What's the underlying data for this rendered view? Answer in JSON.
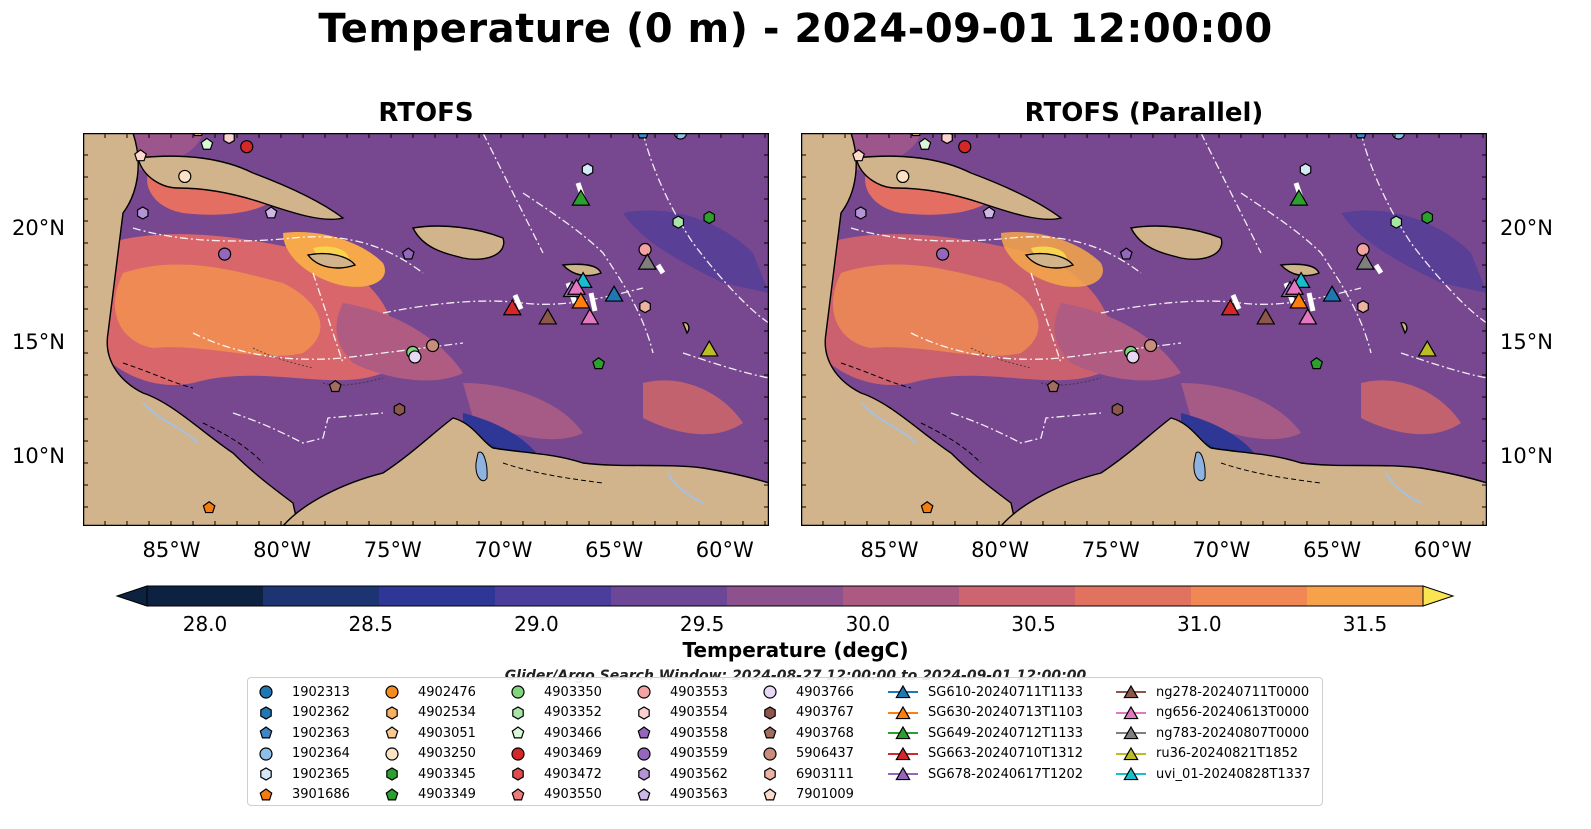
{
  "title": "Temperature (0 m) - 2024-09-01 12:00:00",
  "panels": [
    {
      "title": "RTOFS"
    },
    {
      "title": "RTOFS (Parallel)"
    }
  ],
  "lon_ticks": [
    "85°W",
    "80°W",
    "75°W",
    "70°W",
    "65°W",
    "60°W"
  ],
  "lat_ticks": [
    "20°N",
    "15°N",
    "10°N"
  ],
  "map_extent": {
    "lon": [
      -89,
      -58
    ],
    "lat": [
      7,
      24.2
    ]
  },
  "colorbar": {
    "label": "Temperature (degC)",
    "ticks": [
      "28.0",
      "28.5",
      "29.0",
      "29.5",
      "30.0",
      "30.5",
      "31.0",
      "31.5"
    ],
    "range": [
      28.0,
      31.5
    ],
    "colors": [
      "#0c2240",
      "#1c3572",
      "#2f3796",
      "#4a3d9c",
      "#6c4797",
      "#8d518d",
      "#ad5a83",
      "#cc6570",
      "#e27260",
      "#f08754",
      "#f6a24a",
      "#f6c24a",
      "#f9e451"
    ]
  },
  "search_window": "Glider/Argo Search Window: 2024-08-27 12:00:00 to 2024-09-01 12:00:00",
  "legend": {
    "argo": [
      {
        "label": "1902313",
        "color": "#1f77b4",
        "shape": "circle"
      },
      {
        "label": "1902362",
        "color": "#1f77b4",
        "shape": "hexagon"
      },
      {
        "label": "1902363",
        "color": "#3f86c9",
        "shape": "pentagon"
      },
      {
        "label": "1902364",
        "color": "#8fbfe8",
        "shape": "circle"
      },
      {
        "label": "1902365",
        "color": "#d4e8f8",
        "shape": "hexagon"
      },
      {
        "label": "3901686",
        "color": "#f57c0e",
        "shape": "pentagon"
      },
      {
        "label": "4902476",
        "color": "#f58b1f",
        "shape": "circle"
      },
      {
        "label": "4902534",
        "color": "#f8b062",
        "shape": "hexagon"
      },
      {
        "label": "4903051",
        "color": "#fbc98f",
        "shape": "pentagon"
      },
      {
        "label": "4903250",
        "color": "#fde2c4",
        "shape": "circle"
      },
      {
        "label": "4903345",
        "color": "#2ca02c",
        "shape": "hexagon"
      },
      {
        "label": "4903349",
        "color": "#2ca02c",
        "shape": "pentagon"
      },
      {
        "label": "4903350",
        "color": "#7fd67f",
        "shape": "circle"
      },
      {
        "label": "4903352",
        "color": "#a8e6a8",
        "shape": "hexagon"
      },
      {
        "label": "4903466",
        "color": "#d8f8d8",
        "shape": "pentagon"
      },
      {
        "label": "4903469",
        "color": "#d62728",
        "shape": "circle"
      },
      {
        "label": "4903472",
        "color": "#e04b4b",
        "shape": "hexagon"
      },
      {
        "label": "4903550",
        "color": "#ec7c7c",
        "shape": "pentagon"
      },
      {
        "label": "4903553",
        "color": "#f4a2a2",
        "shape": "circle"
      },
      {
        "label": "4903554",
        "color": "#fad0d0",
        "shape": "hexagon"
      },
      {
        "label": "4903558",
        "color": "#9467bd",
        "shape": "pentagon"
      },
      {
        "label": "4903559",
        "color": "#9467bd",
        "shape": "circle"
      },
      {
        "label": "4903562",
        "color": "#b594d6",
        "shape": "hexagon"
      },
      {
        "label": "4903563",
        "color": "#cfb7e8",
        "shape": "pentagon"
      },
      {
        "label": "4903766",
        "color": "#e8d8f6",
        "shape": "circle"
      },
      {
        "label": "4903767",
        "color": "#8c564b",
        "shape": "hexagon"
      },
      {
        "label": "4903768",
        "color": "#a16d60",
        "shape": "pentagon"
      },
      {
        "label": "5906437",
        "color": "#c78e7e",
        "shape": "circle"
      },
      {
        "label": "6903111",
        "color": "#eab3a2",
        "shape": "hexagon"
      },
      {
        "label": "7901009",
        "color": "#fbd9cb",
        "shape": "pentagon"
      }
    ],
    "gliders": [
      {
        "label": "SG610-20240711T1133",
        "color": "#1f77b4"
      },
      {
        "label": "SG630-20240713T1103",
        "color": "#ff7f0e"
      },
      {
        "label": "SG649-20240712T1133",
        "color": "#2ca02c"
      },
      {
        "label": "SG663-20240710T1312",
        "color": "#d62728"
      },
      {
        "label": "SG678-20240617T1202",
        "color": "#9467bd"
      },
      {
        "label": "ng278-20240711T0000",
        "color": "#8c564b"
      },
      {
        "label": "ng656-20240613T0000",
        "color": "#e377c2"
      },
      {
        "label": "ng783-20240807T0000",
        "color": "#7f7f7f"
      },
      {
        "label": "ru36-20240821T1852",
        "color": "#bcbd22"
      },
      {
        "label": "uvi_01-20240828T1337",
        "color": "#17becf"
      }
    ]
  },
  "argo_positions": [
    {
      "id": "1902364",
      "lon": -62,
      "lat": 24.2
    },
    {
      "id": "1902363",
      "lon": -63.7,
      "lat": 24.2
    },
    {
      "id": "1902365",
      "lon": -66.2,
      "lat": 22.6
    },
    {
      "id": "4903352",
      "lon": -62.1,
      "lat": 20.3
    },
    {
      "id": "4903345",
      "lon": -60.7,
      "lat": 20.5
    },
    {
      "id": "4903553",
      "lon": -63.6,
      "lat": 19.1
    },
    {
      "id": "6903111",
      "lon": -63.6,
      "lat": 16.6
    },
    {
      "id": "4903349",
      "lon": -65.7,
      "lat": 14.1
    },
    {
      "id": "4903350",
      "lon": -74.1,
      "lat": 14.6
    },
    {
      "id": "4903766",
      "lon": -74.0,
      "lat": 14.4
    },
    {
      "id": "5906437",
      "lon": -73.2,
      "lat": 14.9
    },
    {
      "id": "4903559",
      "lon": -82.6,
      "lat": 18.9
    },
    {
      "id": "4903563",
      "lon": -80.5,
      "lat": 20.7
    },
    {
      "id": "4903558",
      "lon": -74.3,
      "lat": 18.9
    },
    {
      "id": "4903562",
      "lon": -86.3,
      "lat": 20.7
    },
    {
      "id": "4903250",
      "lon": -84.4,
      "lat": 22.3
    },
    {
      "id": "7901009",
      "lon": -86.4,
      "lat": 23.2
    },
    {
      "id": "4903469",
      "lon": -81.6,
      "lat": 23.6
    },
    {
      "id": "4903466",
      "lon": -83.4,
      "lat": 23.7
    },
    {
      "id": "4903554",
      "lon": -82.4,
      "lat": 24.0
    },
    {
      "id": "4903768",
      "lon": -77.6,
      "lat": 13.1
    },
    {
      "id": "4903767",
      "lon": -74.7,
      "lat": 12.1
    },
    {
      "id": "3901686",
      "lon": -83.3,
      "lat": 7.8
    },
    {
      "id": "4903051",
      "lon": -83.8,
      "lat": 24.3
    }
  ],
  "glider_positions": [
    {
      "id": "SG649-20240712T1133",
      "lon": -66.5,
      "lat": 21.3
    },
    {
      "id": "ng783-20240807T0000",
      "lon": -63.5,
      "lat": 18.5
    },
    {
      "id": "uvi_01-20240828T1337",
      "lon": -66.4,
      "lat": 17.7
    },
    {
      "id": "SG678-20240617T1202",
      "lon": -66.9,
      "lat": 17.3
    },
    {
      "id": "ng656-20240613T0000",
      "lon": -66.7,
      "lat": 17.4
    },
    {
      "id": "SG610-20240711T1133",
      "lon": -65.0,
      "lat": 17.1
    },
    {
      "id": "SG630-20240713T1103",
      "lon": -66.5,
      "lat": 16.8
    },
    {
      "id": "SG663-20240710T1312",
      "lon": -69.6,
      "lat": 16.5
    },
    {
      "id": "ng278-20240711T0000",
      "lon": -68.0,
      "lat": 16.1
    },
    {
      "id": "ng656b",
      "lon": -66.1,
      "lat": 16.1
    },
    {
      "id": "ru36-20240821T1852",
      "lon": -60.7,
      "lat": 14.7
    }
  ]
}
